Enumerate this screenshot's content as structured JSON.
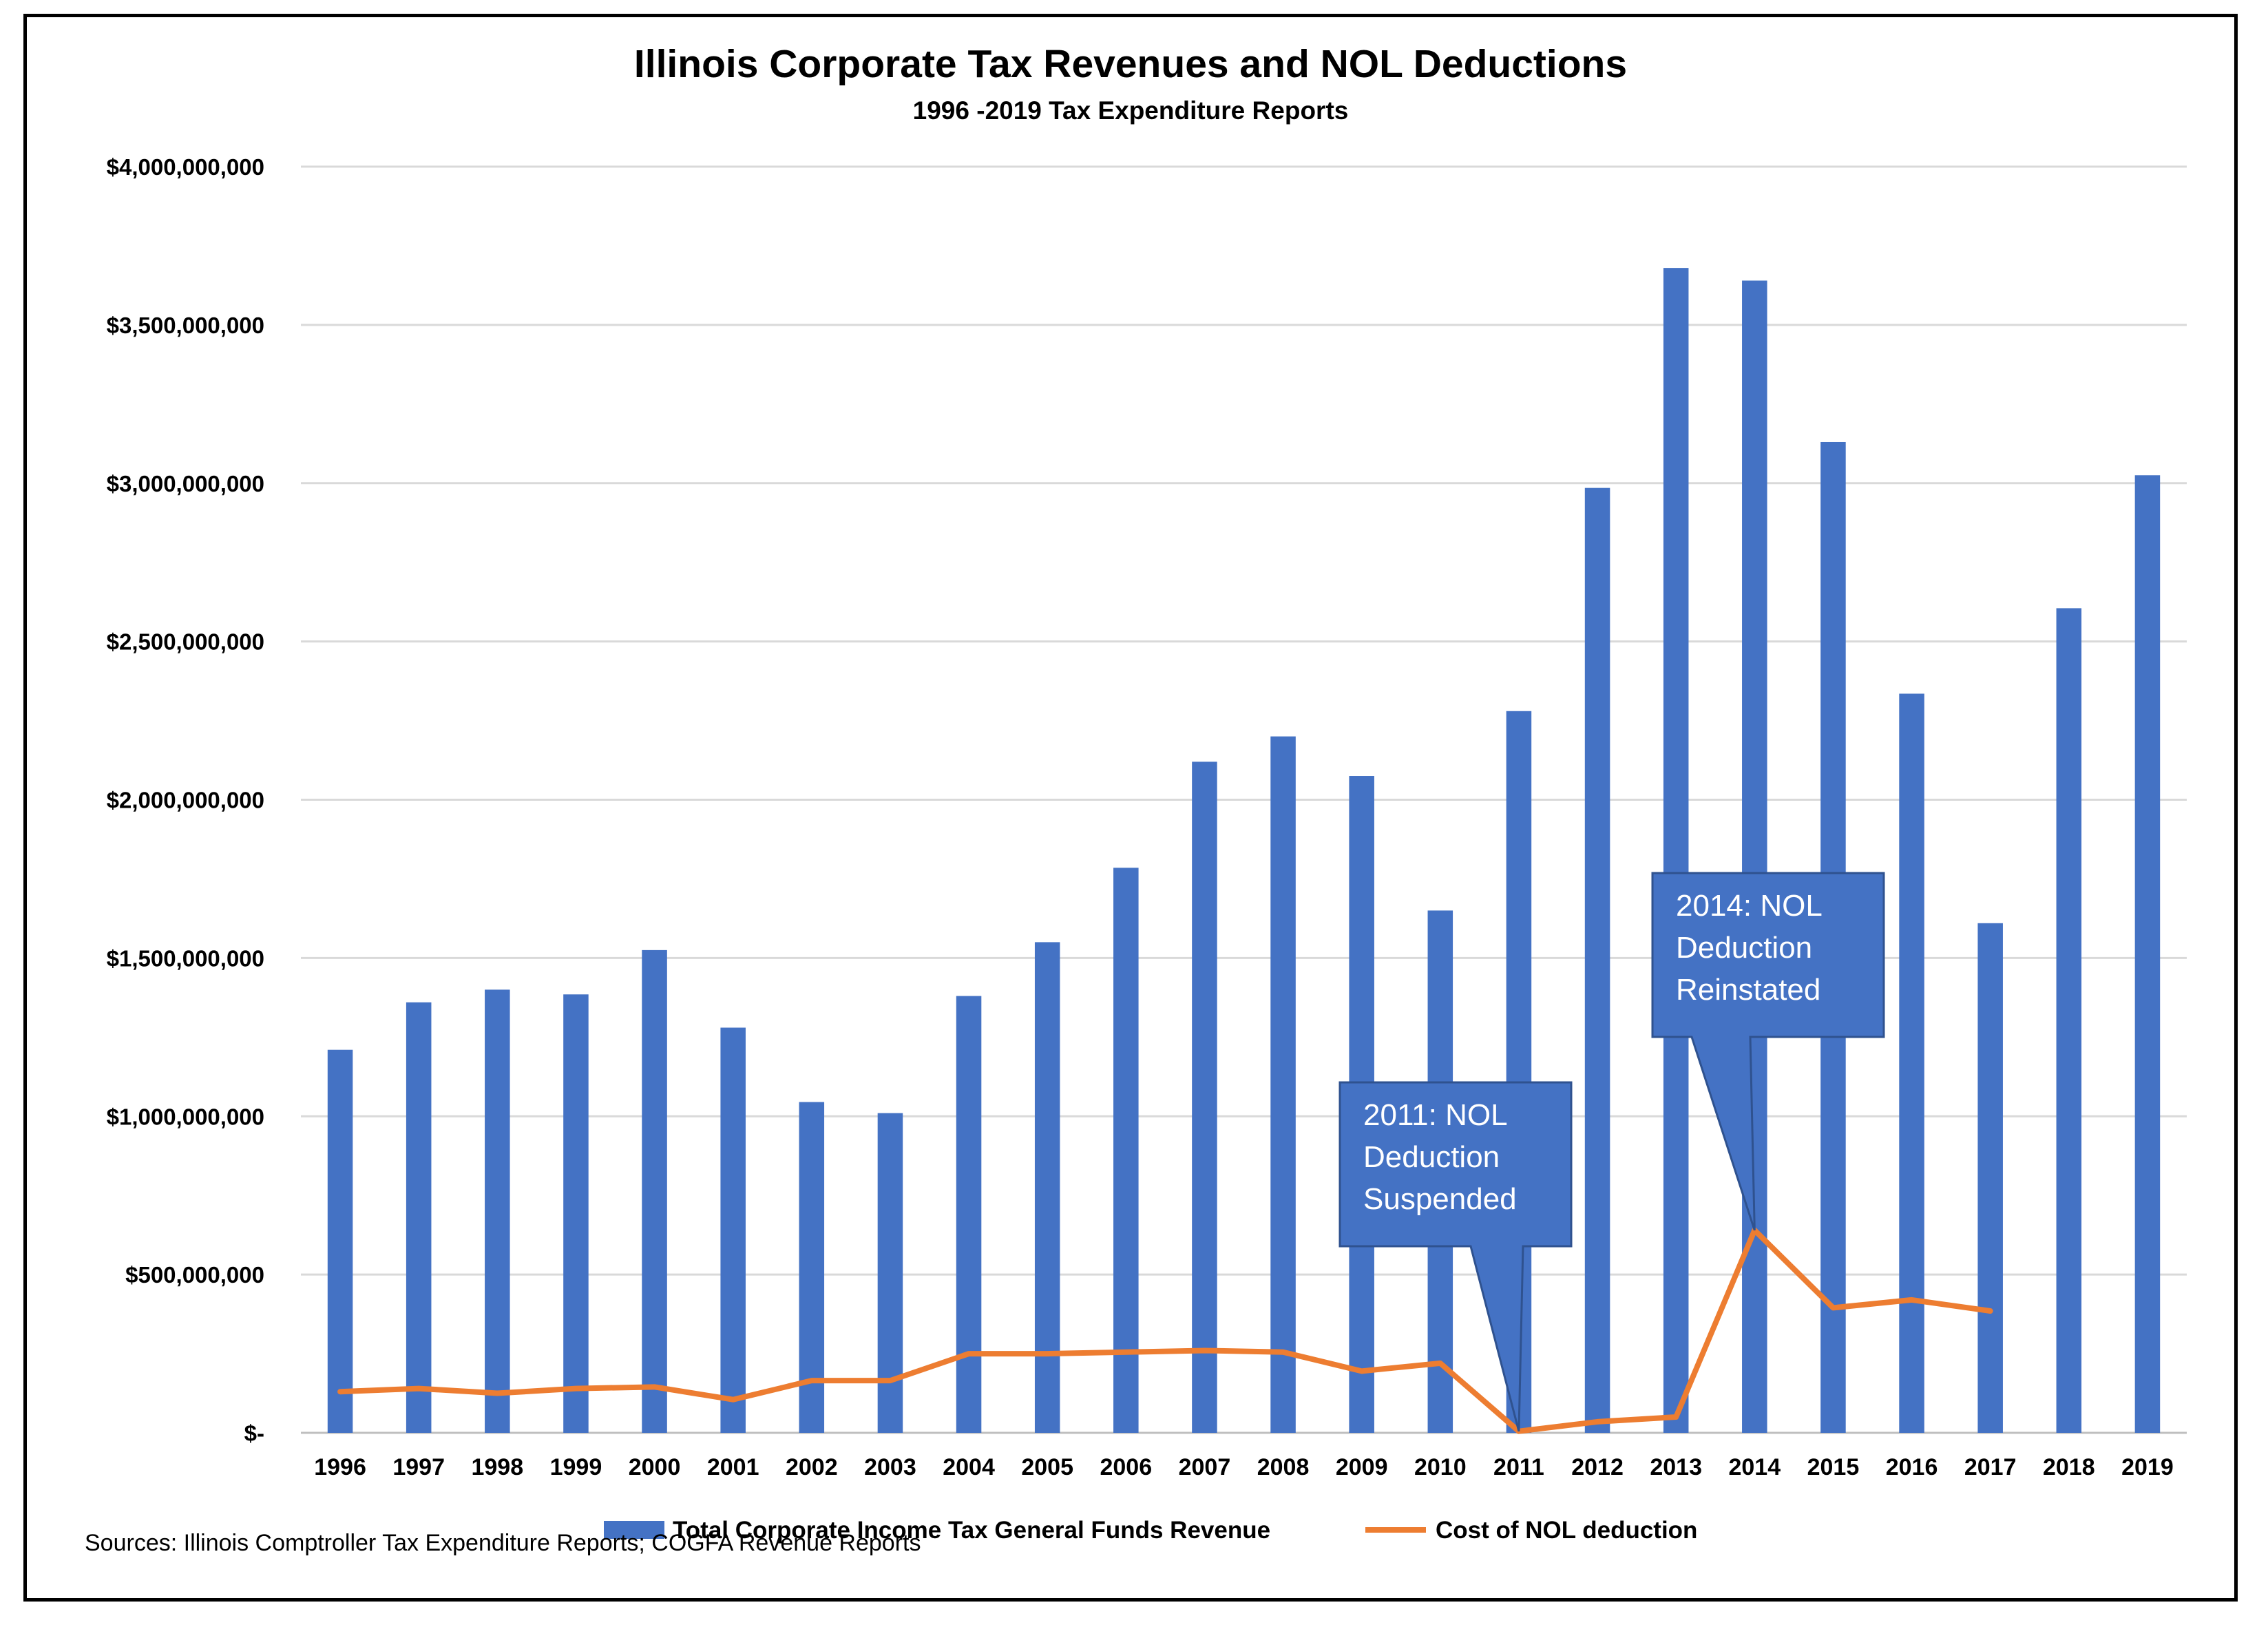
{
  "chart_data": {
    "type": "bar",
    "title": "Illinois Corporate Tax Revenues and NOL Deductions",
    "subtitle": "1996 -2019 Tax Expenditure Reports",
    "categories": [
      "1996",
      "1997",
      "1998",
      "1999",
      "2000",
      "2001",
      "2002",
      "2003",
      "2004",
      "2005",
      "2006",
      "2007",
      "2008",
      "2009",
      "2010",
      "2011",
      "2012",
      "2013",
      "2014",
      "2015",
      "2016",
      "2017",
      "2018",
      "2019"
    ],
    "series": [
      {
        "name": "Total Corporate Income Tax General Funds Revenue",
        "type": "bar",
        "color": "#4472C4",
        "values": [
          1210000000,
          1360000000,
          1400000000,
          1385000000,
          1525000000,
          1280000000,
          1045000000,
          1010000000,
          1380000000,
          1550000000,
          1785000000,
          2120000000,
          2200000000,
          2075000000,
          1650000000,
          2280000000,
          2985000000,
          3680000000,
          3640000000,
          3130000000,
          2335000000,
          1610000000,
          2605000000,
          3025000000
        ]
      },
      {
        "name": "Cost of NOL deduction",
        "type": "line",
        "color": "#ED7D31",
        "values": [
          130000000,
          140000000,
          125000000,
          140000000,
          145000000,
          105000000,
          165000000,
          165000000,
          250000000,
          250000000,
          255000000,
          260000000,
          255000000,
          195000000,
          220000000,
          5000000,
          35000000,
          50000000,
          640000000,
          395000000,
          420000000,
          385000000,
          null,
          null
        ]
      }
    ],
    "ylim": [
      0,
      4000000000
    ],
    "yticks": [
      0,
      500000000,
      1000000000,
      1500000000,
      2000000000,
      2500000000,
      3000000000,
      3500000000,
      4000000000
    ],
    "ytick_labels": [
      "$-",
      "$500,000,000",
      "$1,000,000,000",
      "$1,500,000,000",
      "$2,000,000,000",
      "$2,500,000,000",
      "$3,000,000,000",
      "$3,500,000,000",
      "$4,000,000,000"
    ],
    "xlabel": "",
    "ylabel": "",
    "grid": true,
    "legend_position": "bottom",
    "annotations": [
      {
        "lines": [
          "2011: NOL",
          "Deduction",
          "Suspended"
        ],
        "target_category": "2011",
        "target_series": 1
      },
      {
        "lines": [
          "2014: NOL",
          "Deduction",
          "Reinstated"
        ],
        "target_category": "2014",
        "target_series": 1
      }
    ],
    "annotation_color": "#4472C4",
    "source": "Sources: Illinois Comptroller Tax Expenditure Reports; COGFA Revenue Reports"
  }
}
